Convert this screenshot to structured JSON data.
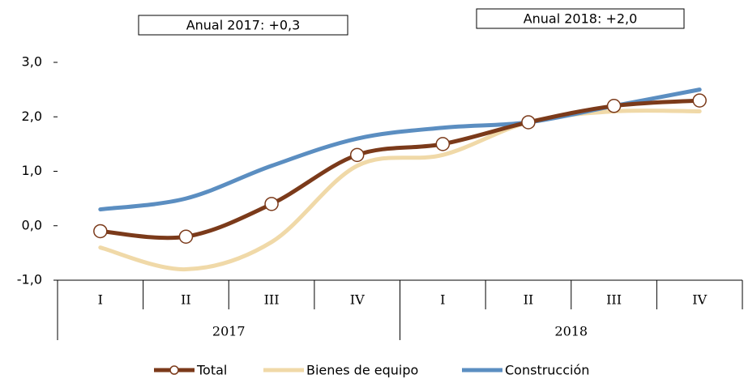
{
  "chart_data": {
    "type": "line",
    "annotations": [
      "Anual 2017: +0,3",
      "Anual 2018: +2,0"
    ],
    "categories": [
      "I",
      "II",
      "III",
      "IV",
      "I",
      "II",
      "III",
      "IV"
    ],
    "groups": [
      "2017",
      "2018"
    ],
    "series": [
      {
        "name": "Total",
        "color": "#7b3a1a",
        "values": [
          -0.1,
          -0.2,
          0.4,
          1.3,
          1.5,
          1.9,
          2.2,
          2.3
        ]
      },
      {
        "name": "Bienes de equipo",
        "color": "#f0d9a8",
        "values": [
          -0.4,
          -0.8,
          -0.3,
          1.1,
          1.3,
          1.9,
          2.1,
          2.1
        ]
      },
      {
        "name": "Construcción",
        "color": "#5b8ec1",
        "values": [
          0.3,
          0.5,
          1.1,
          1.6,
          1.8,
          1.9,
          2.2,
          2.5
        ]
      }
    ],
    "markers": [
      "Total"
    ],
    "ylim": [
      -1,
      3
    ],
    "yticks": [
      {
        "value": -1,
        "label": "-1,0"
      },
      {
        "value": 0,
        "label": "0,0"
      },
      {
        "value": 1,
        "label": "1,0"
      },
      {
        "value": 2,
        "label": "2,0"
      },
      {
        "value": 3,
        "label": "3,0"
      }
    ],
    "grid": false
  }
}
